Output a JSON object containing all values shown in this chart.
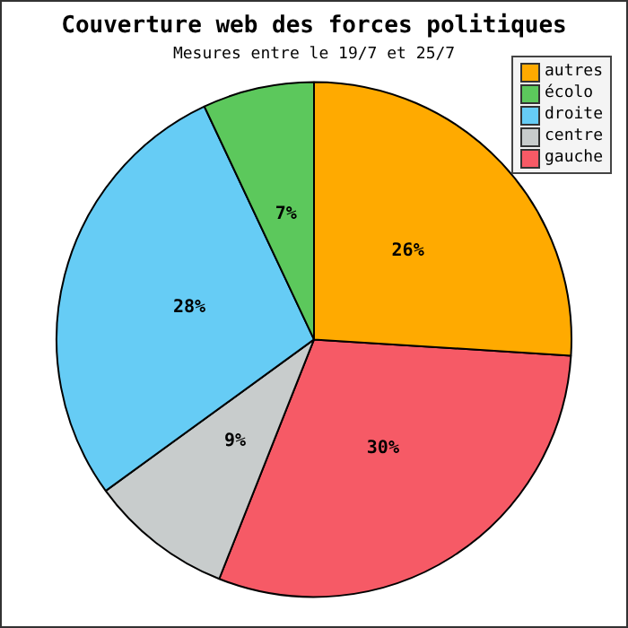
{
  "chart_data": {
    "type": "pie",
    "title": "Couverture web des forces politiques",
    "subtitle": "Mesures entre le 19/7 et 25/7",
    "categories": [
      "autres",
      "écolo",
      "droite",
      "centre",
      "gauche"
    ],
    "values": [
      26,
      7,
      28,
      9,
      30
    ],
    "colors": [
      "#ffaa00",
      "#5cc85c",
      "#66ccf5",
      "#c8cccc",
      "#f65a66"
    ],
    "value_labels": [
      "26%",
      "7%",
      "28%",
      "9%",
      "30%"
    ],
    "legend": "top right"
  }
}
